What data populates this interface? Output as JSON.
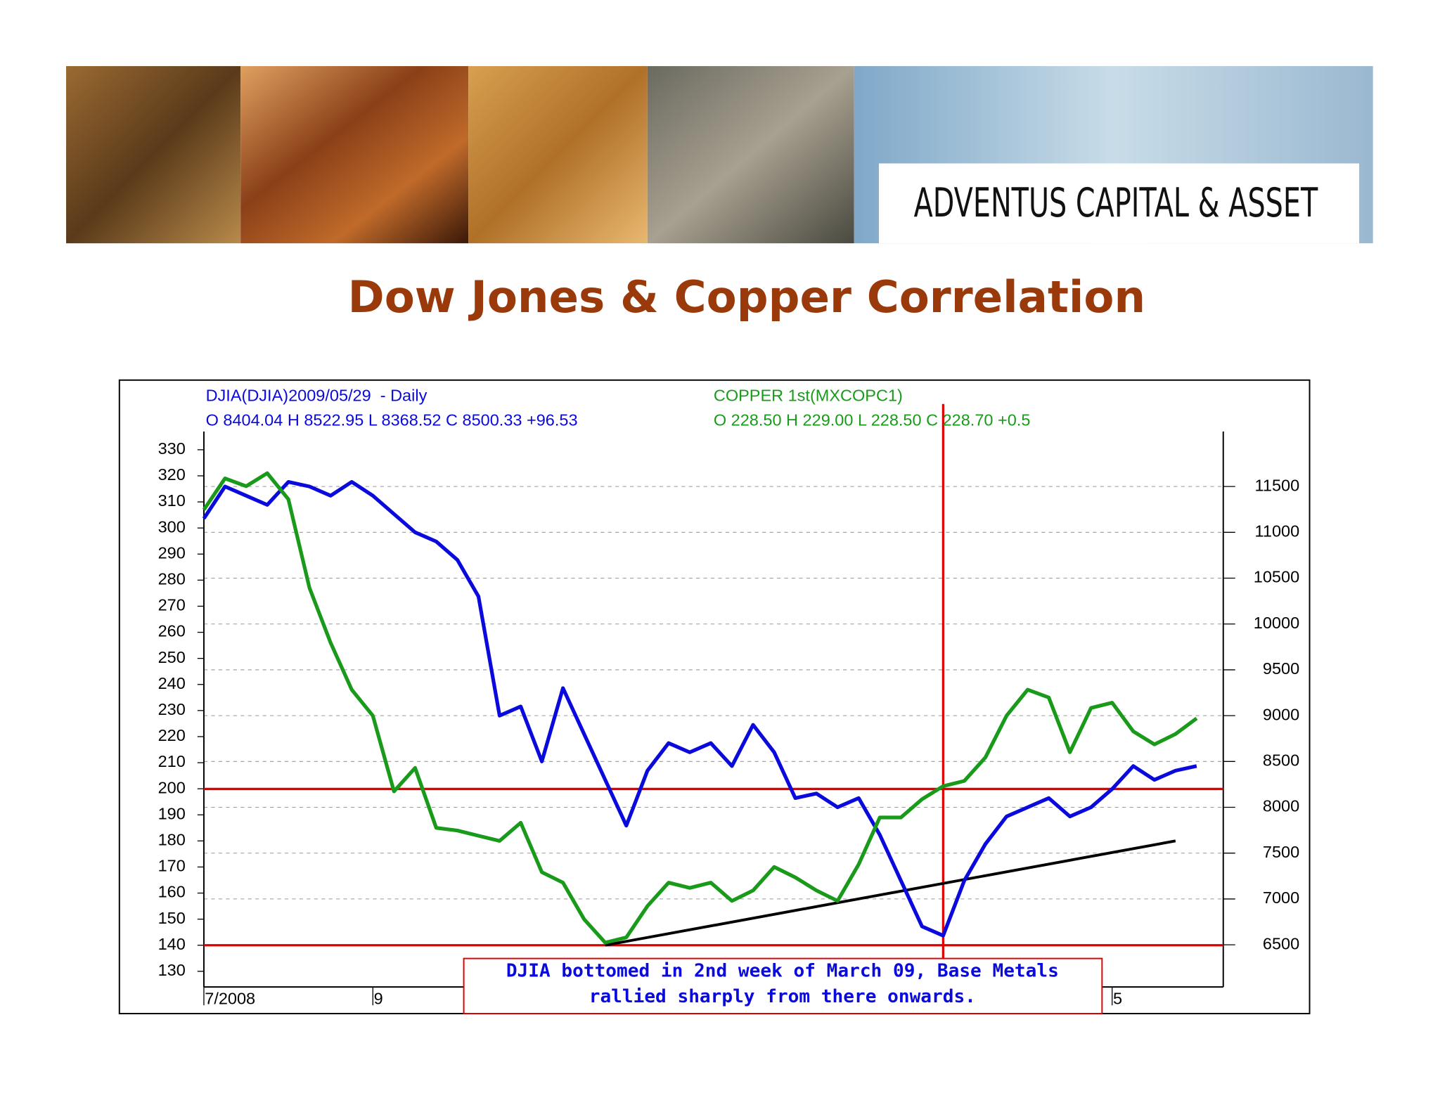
{
  "brand": "ADVENTUS CAPITAL & ASSET",
  "chart_data": {
    "type": "line",
    "title": "Dow Jones & Copper Correlation",
    "categories": [
      "7/2008",
      null,
      null,
      null,
      null,
      null,
      null,
      null,
      "9",
      null,
      null,
      null,
      null,
      null,
      null,
      null,
      null,
      null,
      null,
      null,
      null,
      null,
      null,
      null,
      null,
      null,
      null,
      null,
      null,
      null,
      null,
      null,
      null,
      null,
      null,
      null,
      null,
      null,
      null,
      null,
      null,
      null,
      null,
      "5",
      null,
      null,
      null,
      null
    ],
    "series": [
      {
        "name": "DJIA(DJIA)2009/05/29  - Daily",
        "quote": "O 8404.04 H 8522.95 L 8368.52 C 8500.33 +96.53",
        "color": "#0a0adc",
        "axis": "y2",
        "values": [
          11150,
          11500,
          11400,
          11300,
          11550,
          11500,
          11400,
          11550,
          11400,
          11200,
          11000,
          10900,
          10700,
          10300,
          9000,
          9100,
          8500,
          9300,
          8800,
          8300,
          7800,
          8400,
          8700,
          8600,
          8700,
          8450,
          8900,
          8600,
          8100,
          8150,
          8000,
          8100,
          7700,
          7200,
          6700,
          6600,
          7200,
          7600,
          7900,
          8000,
          8100,
          7900,
          8000,
          8200,
          8450,
          8300,
          8400,
          8450
        ]
      },
      {
        "name": "COPPER 1st(MXCOPC1)",
        "quote": "O 228.50 H 229.00 L 228.50 C 228.70 +0.5",
        "color": "#1a9a1a",
        "axis": "y",
        "values": [
          307,
          319,
          316,
          321,
          311,
          277,
          256,
          238,
          228,
          199,
          208,
          185,
          184,
          182,
          180,
          187,
          168,
          164,
          150,
          141,
          143,
          155,
          164,
          162,
          164,
          157,
          161,
          170,
          166,
          161,
          157,
          171,
          189,
          189,
          196,
          201,
          203,
          212,
          228,
          238,
          235,
          214,
          231,
          233,
          222,
          217,
          221,
          227
        ]
      }
    ],
    "ylim": [
      124,
      337
    ],
    "yticks": [
      130,
      140,
      150,
      160,
      170,
      180,
      190,
      200,
      210,
      220,
      230,
      240,
      250,
      260,
      270,
      280,
      290,
      300,
      310,
      320,
      330
    ],
    "y2lim": [
      6040,
      12100
    ],
    "y2ticks": [
      6500,
      7000,
      7500,
      8000,
      8500,
      9000,
      9500,
      10000,
      10500,
      11000,
      11500
    ],
    "grid": true,
    "reference_lines": [
      {
        "axis": "y",
        "value": 140,
        "color": "#e00000"
      },
      {
        "axis": "y2",
        "value": 8200,
        "color": "#e00000"
      }
    ],
    "vertical_line": {
      "category_index": 35,
      "color": "#e00000"
    },
    "trendline": {
      "axis": "y",
      "start": [
        19,
        140
      ],
      "end": [
        46,
        180
      ],
      "color": "#000000"
    },
    "annotation": [
      "DJIA bottomed in 2nd week of March 09, Base Metals",
      "rallied sharply from there onwards."
    ]
  }
}
